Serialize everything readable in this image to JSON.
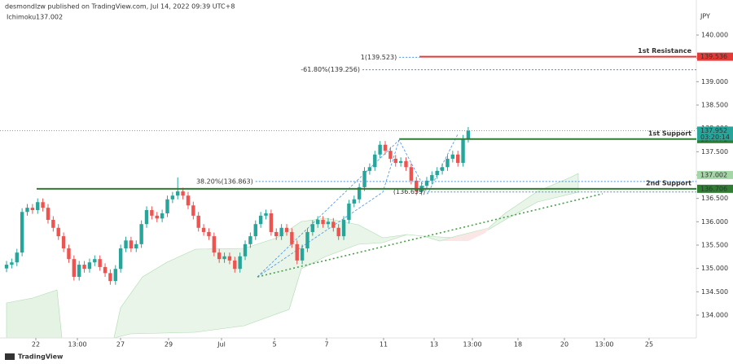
{
  "chart_data": {
    "type": "candlestick",
    "header": "desmondlzw published on TradingView.com, Jul 14, 2022 09:39 UTC+8",
    "currency": "JPY",
    "indicator": {
      "name": "Ichimoku",
      "value": 137.002
    },
    "footer": "TradingView",
    "up_color": "#26a69a",
    "down_color": "#ef5350",
    "x": [
      0,
      1,
      2,
      3,
      4,
      5,
      6,
      7,
      8,
      9,
      10,
      11,
      12,
      13,
      14,
      15,
      16,
      17,
      18,
      19,
      20,
      21,
      22,
      23,
      24,
      25,
      26,
      27,
      28,
      29,
      30,
      31,
      32,
      33,
      34,
      35,
      36,
      37,
      38,
      39,
      40,
      41,
      42,
      43,
      44,
      45,
      46,
      47,
      48,
      49,
      50,
      51,
      52,
      53,
      54,
      55,
      56,
      57,
      58,
      59,
      60,
      61,
      62,
      63,
      64,
      65,
      66,
      67,
      68,
      69,
      70,
      71,
      72,
      73,
      74,
      75,
      76,
      77,
      78,
      79,
      80,
      81,
      82,
      83,
      84,
      85,
      86,
      87,
      88,
      89
    ],
    "open": [
      135.0,
      135.08,
      135.13,
      135.34,
      136.21,
      136.3,
      136.25,
      136.42,
      136.3,
      136.04,
      135.87,
      135.69,
      135.43,
      135.2,
      134.82,
      135.08,
      134.99,
      135.13,
      135.2,
      135.03,
      134.9,
      134.73,
      134.99,
      135.43,
      135.6,
      135.43,
      135.52,
      135.95,
      136.25,
      136.13,
      136.07,
      136.18,
      136.48,
      136.56,
      136.65,
      136.56,
      136.35,
      136.13,
      135.87,
      135.78,
      135.69,
      135.34,
      135.2,
      135.26,
      135.17,
      134.99,
      135.26,
      135.52,
      135.69,
      135.95,
      136.13,
      136.18,
      135.78,
      135.69,
      135.87,
      135.78,
      135.52,
      135.17,
      135.43,
      135.78,
      135.95,
      136.04,
      135.95,
      136.0,
      135.87,
      135.69,
      136.04,
      136.39,
      136.48,
      136.74,
      137.09,
      137.17,
      137.44,
      137.65,
      137.52,
      137.35,
      137.26,
      137.3,
      137.17,
      136.88,
      136.65,
      136.77,
      136.88,
      137.0,
      137.09,
      137.17,
      137.35,
      137.44,
      137.26,
      137.78
    ],
    "high": [
      135.16,
      135.21,
      135.42,
      136.29,
      136.38,
      136.38,
      136.5,
      136.5,
      136.38,
      136.12,
      135.95,
      135.77,
      135.51,
      135.28,
      135.16,
      135.16,
      135.21,
      135.28,
      135.28,
      135.11,
      134.98,
      135.07,
      135.51,
      135.68,
      135.68,
      135.6,
      136.03,
      136.33,
      136.33,
      136.21,
      136.26,
      136.56,
      136.64,
      136.95,
      136.73,
      136.64,
      136.43,
      136.21,
      135.95,
      135.86,
      135.77,
      135.42,
      135.34,
      135.34,
      135.25,
      135.34,
      135.6,
      135.77,
      136.03,
      136.21,
      136.26,
      136.26,
      135.86,
      135.95,
      135.95,
      135.86,
      135.6,
      135.51,
      135.86,
      136.03,
      136.12,
      136.12,
      136.08,
      136.08,
      135.95,
      136.12,
      136.47,
      136.56,
      136.82,
      137.17,
      137.25,
      137.52,
      137.73,
      137.73,
      137.6,
      137.43,
      137.38,
      137.38,
      137.25,
      136.96,
      136.85,
      136.96,
      137.08,
      137.17,
      137.25,
      137.43,
      137.52,
      137.52,
      137.86,
      138.03
    ],
    "low": [
      134.92,
      135.0,
      135.05,
      135.26,
      136.13,
      136.17,
      136.17,
      136.22,
      135.96,
      135.79,
      135.61,
      135.35,
      135.12,
      134.74,
      134.74,
      134.91,
      134.91,
      135.05,
      134.95,
      134.82,
      134.65,
      134.65,
      134.91,
      135.35,
      135.35,
      135.35,
      135.44,
      135.87,
      136.05,
      135.99,
      135.99,
      136.1,
      136.4,
      136.48,
      136.48,
      136.27,
      136.05,
      135.79,
      135.7,
      135.61,
      135.26,
      135.12,
      135.12,
      135.09,
      134.91,
      134.91,
      135.18,
      135.44,
      135.61,
      135.87,
      136.05,
      135.7,
      135.61,
      135.61,
      135.7,
      135.44,
      135.09,
      135.09,
      135.35,
      135.7,
      135.87,
      135.87,
      135.87,
      135.79,
      135.61,
      135.61,
      135.96,
      136.31,
      136.4,
      136.66,
      137.01,
      137.09,
      137.36,
      137.44,
      137.27,
      137.18,
      137.18,
      137.09,
      136.8,
      136.57,
      136.57,
      136.69,
      136.8,
      136.92,
      137.01,
      137.09,
      137.27,
      137.18,
      137.18,
      137.7
    ],
    "close": [
      135.08,
      135.13,
      135.34,
      136.21,
      136.3,
      136.25,
      136.42,
      136.3,
      136.04,
      135.87,
      135.69,
      135.43,
      135.2,
      134.82,
      135.08,
      134.99,
      135.13,
      135.2,
      135.03,
      134.9,
      134.73,
      134.99,
      135.43,
      135.6,
      135.43,
      135.52,
      135.95,
      136.25,
      136.13,
      136.07,
      136.18,
      136.48,
      136.56,
      136.65,
      136.56,
      136.35,
      136.13,
      135.87,
      135.78,
      135.69,
      135.34,
      135.2,
      135.26,
      135.17,
      134.99,
      135.26,
      135.52,
      135.69,
      135.95,
      136.13,
      136.18,
      135.78,
      135.69,
      135.87,
      135.78,
      135.52,
      135.17,
      135.43,
      135.78,
      135.95,
      136.04,
      135.95,
      136.0,
      135.87,
      135.69,
      136.04,
      136.39,
      136.48,
      136.74,
      137.09,
      137.17,
      137.44,
      137.65,
      137.52,
      137.35,
      137.26,
      137.3,
      137.17,
      136.88,
      136.65,
      136.77,
      136.88,
      137.0,
      137.09,
      137.17,
      137.35,
      137.44,
      137.26,
      137.78,
      137.95
    ],
    "xlim": [
      -1.26,
      132.97
    ],
    "xticks": [
      {
        "value": 5.65,
        "label": "22"
      },
      {
        "value": 13.66,
        "label": "13:00"
      },
      {
        "value": 21.98,
        "label": "27"
      },
      {
        "value": 31.24,
        "label": "29"
      },
      {
        "value": 41.44,
        "label": "Jul"
      },
      {
        "value": 51.65,
        "label": "5"
      },
      {
        "value": 61.7,
        "label": "7"
      },
      {
        "value": 72.68,
        "label": "11"
      },
      {
        "value": 82.42,
        "label": "13"
      },
      {
        "value": 89.8,
        "label": "13:00"
      },
      {
        "value": 98.59,
        "label": "18"
      },
      {
        "value": 107.54,
        "label": "20"
      },
      {
        "value": 115.23,
        "label": "13:00"
      },
      {
        "value": 123.86,
        "label": "25"
      }
    ],
    "ylim": [
      133.511,
      140.576
    ],
    "yticks": [
      {
        "value": 134,
        "label": "134.000"
      },
      {
        "value": 134.5,
        "label": "134.500"
      },
      {
        "value": 135,
        "label": "135.000"
      },
      {
        "value": 135.5,
        "label": "135.500"
      },
      {
        "value": 136,
        "label": "136.000"
      },
      {
        "value": 136.5,
        "label": "136.500"
      },
      {
        "value": 137,
        "label": "137.000"
      },
      {
        "value": 137.5,
        "label": "137.500"
      },
      {
        "value": 138,
        "label": "138.000"
      },
      {
        "value": 138.5,
        "label": "138.500"
      },
      {
        "value": 139,
        "label": "139.000"
      },
      {
        "value": 139.5,
        "label": "139.500"
      },
      {
        "value": 140,
        "label": "140.000"
      }
    ],
    "last_price": {
      "value": 137.952,
      "countdown": "03:20:14"
    },
    "levels": [
      {
        "name": "1st Resistance",
        "value": 139.536,
        "color": "#e53935",
        "start": 79.6
      },
      {
        "name": "1st Support",
        "value": 137.771,
        "color": "#2e7d32",
        "start": 75.7
      },
      {
        "name": "2nd Support",
        "value": 136.706,
        "color": "#2e7d32",
        "start": 5.8
      }
    ],
    "fib_levels": [
      {
        "label": "1(139.523)",
        "value": 139.523,
        "start": 75.7,
        "end": 79.6
      },
      {
        "label": "-61.80%(139.256)",
        "value": 139.256,
        "start": 68.6,
        "end": 132.97
      },
      {
        "label": "38.20%(136.863)",
        "value": 136.863,
        "start": 48,
        "end": 132.97
      },
      {
        "label": "(136.639)",
        "value": 136.639,
        "start": 81.2,
        "end": 132.97
      }
    ],
    "trendline": {
      "x": [
        48.4,
        114.9
      ],
      "y": [
        134.82,
        136.6
      ],
      "color": "#43a047"
    }
  }
}
